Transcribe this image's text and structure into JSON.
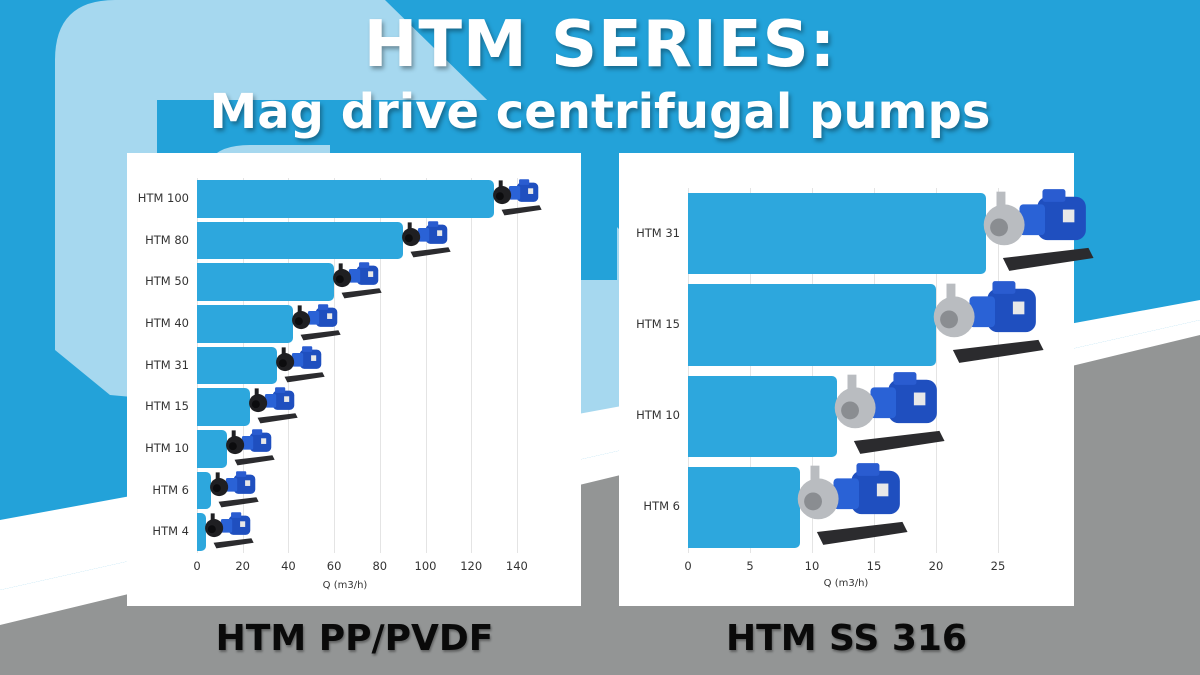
{
  "header": {
    "title": "HTM SERIES:",
    "subtitle": "Mag drive centrifugal pumps"
  },
  "colors": {
    "background_blue": "#23a2d9",
    "light_blue": "#a6d8ef",
    "grey": "#939595",
    "bar": "#2da7dd"
  },
  "chart_data": [
    {
      "type": "bar",
      "orientation": "horizontal",
      "title": "HTM PP/PVDF",
      "categories": [
        "HTM 100",
        "HTM 80",
        "HTM 50",
        "HTM 40",
        "HTM 31",
        "HTM 15",
        "HTM 10",
        "HTM 6",
        "HTM 4"
      ],
      "values": [
        130,
        90,
        60,
        42,
        35,
        23,
        13,
        6,
        4
      ],
      "xlabel": "Q (m3/h)",
      "ylabel": "",
      "xticks": [
        "0",
        "20",
        "40",
        "60",
        "80",
        "100",
        "120",
        "140"
      ],
      "xlim": [
        0,
        160
      ],
      "grid": true,
      "legend": "none",
      "annotations": "pump product image at end of each bar (black body, blue motor)"
    },
    {
      "type": "bar",
      "orientation": "horizontal",
      "title": "HTM SS 316",
      "categories": [
        "HTM 31",
        "HTM 15",
        "HTM 10",
        "HTM 6"
      ],
      "values": [
        24,
        20,
        12,
        9
      ],
      "xlabel": "Q (m3/h)",
      "ylabel": "",
      "xticks": [
        "0",
        "5",
        "10",
        "15",
        "20",
        "25"
      ],
      "xlim": [
        0,
        30
      ],
      "grid": true,
      "legend": "none",
      "annotations": "pump product image at end of each bar (stainless steel body, blue motor)"
    }
  ]
}
